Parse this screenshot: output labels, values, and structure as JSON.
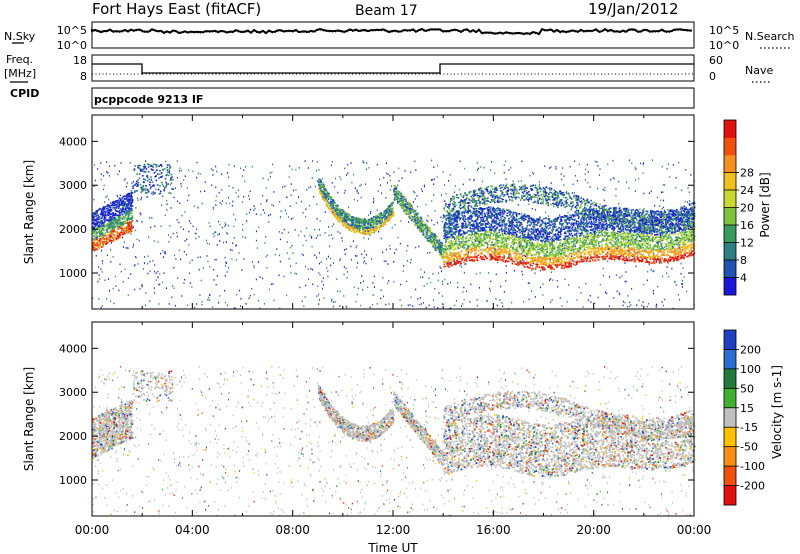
{
  "header": {
    "station": "Fort Hays East (fitACF)",
    "beam": "Beam 17",
    "date": "19/Jan/2012",
    "program": "pcppcode 9213 IF"
  },
  "noise_panel": {
    "left_label": "N.Sky",
    "right_label": "N.Search",
    "left_ticks": [
      "10^5",
      "10^0"
    ],
    "right_ticks": [
      "10^5",
      "10^0"
    ]
  },
  "freq_panel": {
    "left_label_top": "Freq.",
    "left_label_bottom": "[MHz]",
    "right_label": "Nave",
    "left_ticks": [
      "18",
      "8"
    ],
    "right_ticks": [
      "60",
      "0"
    ],
    "cpid_label": "CPID"
  },
  "chart_data": [
    {
      "type": "heatmap",
      "name": "power",
      "xlabel": "",
      "ylabel": "Slant Range [km]",
      "xlim": [
        0,
        24
      ],
      "ylim": [
        180,
        4600
      ],
      "yticks": [
        1000,
        2000,
        3000,
        4000
      ],
      "colorbar": {
        "label": "Power [dB]",
        "ticks": [
          "4",
          "8",
          "12",
          "16",
          "20",
          "24",
          "28"
        ],
        "colors": [
          "#1a18d8",
          "#2452b0",
          "#2e7f82",
          "#3a9a60",
          "#7cc43e",
          "#c8d830",
          "#f0c020",
          "#f59020",
          "#f05010",
          "#e01010"
        ]
      }
    },
    {
      "type": "heatmap",
      "name": "velocity",
      "xlabel": "Time UT",
      "ylabel": "Slant Range [km]",
      "xlim": [
        0,
        24
      ],
      "ylim": [
        180,
        4600
      ],
      "yticks": [
        1000,
        2000,
        3000,
        4000
      ],
      "xticks": [
        "00:00",
        "04:00",
        "08:00",
        "12:00",
        "16:00",
        "20:00",
        "00:00"
      ],
      "colorbar": {
        "label": "Velocity [m s-1]",
        "ticks": [
          "200",
          "100",
          "50",
          "15",
          "-15",
          "-50",
          "-100",
          "-200"
        ],
        "colors": [
          "#2040c0",
          "#2a6fd0",
          "#247a3a",
          "#3fb030",
          "#c0c0c0",
          "#ffc000",
          "#f89018",
          "#f05010",
          "#e01010"
        ]
      }
    }
  ]
}
